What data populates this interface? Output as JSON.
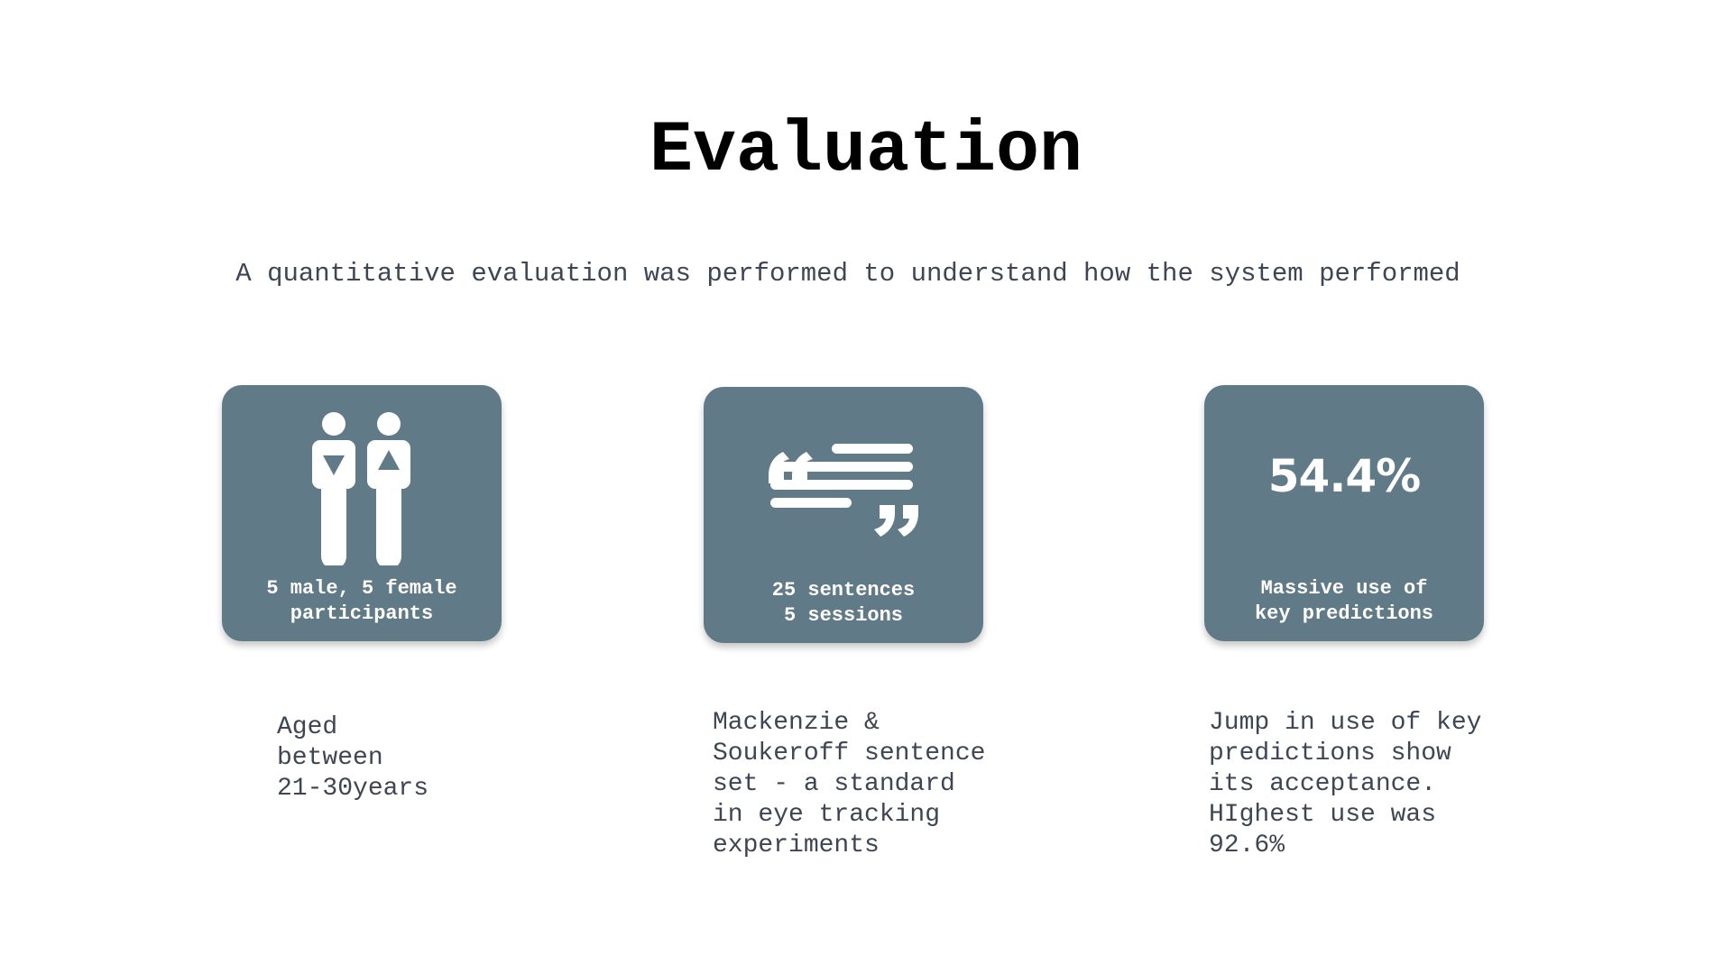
{
  "slide": {
    "title": "Evaluation",
    "subtitle": "A quantitative evaluation was performed to understand how the system performed"
  },
  "cards": [
    {
      "icon": "male-female-people-icon",
      "caption": "5 male, 5 female\nparticipants",
      "description": "Aged\nbetween\n21-30years"
    },
    {
      "icon": "quote-text-icon",
      "caption": "25 sentences\n5 sessions",
      "description": "Mackenzie &\nSoukeroff sentence\nset - a standard\nin eye tracking\nexperiments"
    },
    {
      "stat": "54.4%",
      "caption": "Massive use of\nkey predictions",
      "description": "Jump in use of key\npredictions show\nits acceptance.\nHIghest use was\n92.6%"
    }
  ],
  "colors": {
    "card_background": "#617a87",
    "card_text": "#ffffff",
    "body_text": "#3e4654",
    "title_text": "#000000"
  }
}
